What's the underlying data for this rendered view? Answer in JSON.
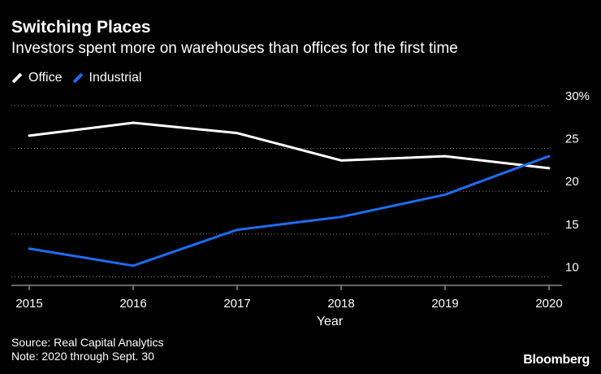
{
  "header": {
    "title": "Switching Places",
    "subtitle": "Investors spent more on warehouses than offices for the first time"
  },
  "footer": {
    "source": "Source: Real Capital Analytics",
    "note": "Note: 2020 through Sept. 30",
    "brand": "Bloomberg"
  },
  "colors": {
    "background": "#000000",
    "office": "#ffffff",
    "industrial": "#1f6cf0",
    "grid": "#888888",
    "text": "#ffffff"
  },
  "chart_data": {
    "type": "line",
    "title": "Switching Places",
    "subtitle": "Investors spent more on warehouses than offices for the first time",
    "xlabel": "Year",
    "ylabel": "",
    "x": [
      "2015",
      "2016",
      "2017",
      "2018",
      "2019",
      "2020"
    ],
    "ylim": [
      9,
      30
    ],
    "y_ticks": [
      10,
      15,
      20,
      25,
      30
    ],
    "y_tick_labels": [
      "10",
      "15",
      "20",
      "25",
      "30%"
    ],
    "grid": true,
    "legend_position": "top-left",
    "series": [
      {
        "name": "Office",
        "color": "#ffffff",
        "values": [
          26.5,
          28.0,
          26.8,
          23.6,
          24.1,
          22.7
        ]
      },
      {
        "name": "Industrial",
        "color": "#1f6cf0",
        "values": [
          13.3,
          11.3,
          15.5,
          17.0,
          19.6,
          24.1
        ]
      }
    ]
  }
}
